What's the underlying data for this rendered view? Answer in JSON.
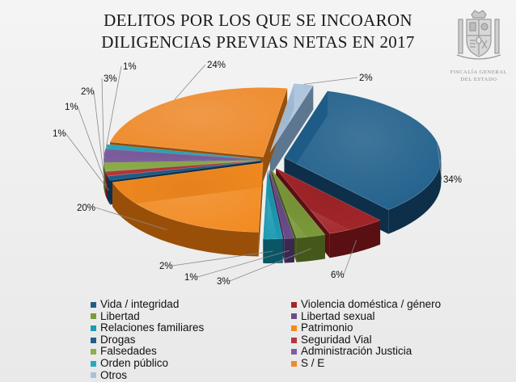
{
  "chart_data": {
    "type": "pie",
    "title_lines": [
      "DELITOS POR LOS QUE SE INCOARON",
      "DILIGENCIAS PREVIAS NETAS EN 2017"
    ],
    "legend_position": "bottom",
    "slices": [
      {
        "name": "Vida / integridad",
        "value": 34,
        "label": "34%",
        "color": "#1f5f8b",
        "dark": "#0d2f4a",
        "explode": 22
      },
      {
        "name": "Violencia doméstica / género",
        "value": 6,
        "label": "6%",
        "color": "#a3262a",
        "dark": "#5a0f12",
        "explode": 22
      },
      {
        "name": "Libertad",
        "value": 3,
        "label": "3%",
        "color": "#7c9a3a",
        "dark": "#45581c",
        "explode": 22
      },
      {
        "name": "Libertad sexual",
        "value": 1,
        "label": "1%",
        "color": "#6b4c8a",
        "dark": "#3a2850",
        "explode": 22
      },
      {
        "name": "Relaciones familiares",
        "value": 2,
        "label": "2%",
        "color": "#1d9bb3",
        "dark": "#0a5566",
        "explode": 22
      },
      {
        "name": "Patrimonio",
        "value": 20,
        "label": "20%",
        "color": "#f28a20",
        "dark": "#9a4f09",
        "explode": 8
      },
      {
        "name": "Drogas",
        "value": 1,
        "label": "1%",
        "color": "#1f5f8b",
        "dark": "#0d2f4a",
        "explode": 8
      },
      {
        "name": "Seguridad Vial",
        "value": 1,
        "label": "1%",
        "color": "#b8363b",
        "dark": "#66151a",
        "explode": 8
      },
      {
        "name": "Falsedades",
        "value": 2,
        "label": "2%",
        "color": "#8db04a",
        "dark": "#4d6322",
        "explode": 8
      },
      {
        "name": "Administración Justicia",
        "value": 3,
        "label": "3%",
        "color": "#7e5fa0",
        "dark": "#45325a",
        "explode": 8
      },
      {
        "name": "Orden público",
        "value": 1,
        "label": "1%",
        "color": "#2aa8c0",
        "dark": "#0f5c6b",
        "explode": 8
      },
      {
        "name": "S / E",
        "value": 24,
        "label": "24%",
        "color": "#ef8a2a",
        "dark": "#93500f",
        "explode": 8
      },
      {
        "name": "Otros",
        "value": 2,
        "label": "2%",
        "color": "#a9c2dc",
        "dark": "#5e7790",
        "explode": 18
      }
    ]
  },
  "crest": {
    "icon": "coat-of-arms-icon",
    "text_line1": "FISCALÍA GENERAL",
    "text_line2": "DEL ESTADO"
  },
  "legend": {
    "left_column": [
      "Vida / integridad",
      "Libertad",
      "Relaciones familiares",
      "Drogas",
      "Falsedades",
      "Orden público",
      "Otros"
    ],
    "right_column": [
      "Violencia doméstica / género",
      "Libertad sexual",
      "Patrimonio",
      "Seguridad Vial",
      "Administración Justicia",
      "S / E"
    ]
  }
}
